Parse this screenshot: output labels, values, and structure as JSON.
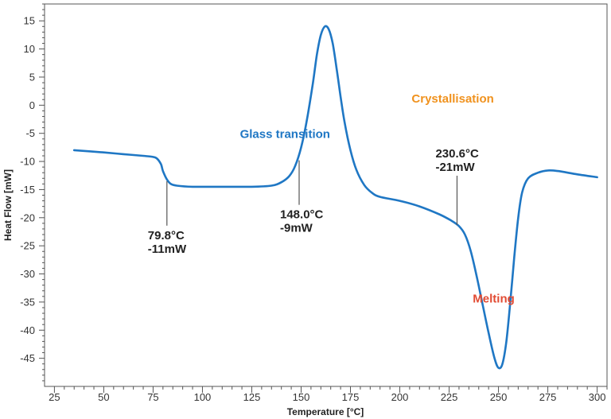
{
  "chart_data": {
    "type": "line",
    "xlabel": "Temperature [°C]",
    "ylabel": "Heat Flow [mW]",
    "xlim": [
      20,
      305
    ],
    "ylim": [
      -50,
      18
    ],
    "x_ticks_major": [
      25,
      50,
      75,
      100,
      125,
      150,
      175,
      200,
      225,
      250,
      275,
      300
    ],
    "y_ticks_major": [
      15,
      10,
      5,
      0,
      -5,
      -10,
      -15,
      -20,
      -25,
      -30,
      -35,
      -40,
      -45
    ],
    "x_tick_labels": [
      "25",
      "50",
      "75",
      "100",
      "125",
      "150",
      "175",
      "200",
      "225",
      "250",
      "275",
      "300"
    ],
    "y_tick_labels": [
      "15",
      "10",
      "5",
      "0",
      "-5",
      "-10",
      "-15",
      "-20",
      "-25",
      "-30",
      "-35",
      "-40",
      "-45"
    ],
    "grid": false,
    "line_color": "#1f77c4",
    "series": [
      {
        "values": [
          [
            35,
            -8.0
          ],
          [
            50,
            -8.4
          ],
          [
            60,
            -8.7
          ],
          [
            70,
            -9.0
          ],
          [
            75,
            -9.2
          ],
          [
            77,
            -9.5
          ],
          [
            79,
            -10.5
          ],
          [
            80,
            -11.7
          ],
          [
            82,
            -13.2
          ],
          [
            84,
            -14.0
          ],
          [
            87,
            -14.3
          ],
          [
            95,
            -14.5
          ],
          [
            110,
            -14.5
          ],
          [
            125,
            -14.5
          ],
          [
            135,
            -14.3
          ],
          [
            140,
            -13.7
          ],
          [
            144,
            -12.6
          ],
          [
            147,
            -10.8
          ],
          [
            150,
            -7.5
          ],
          [
            153,
            -2.5
          ],
          [
            156,
            4.0
          ],
          [
            158,
            9.0
          ],
          [
            160,
            12.5
          ],
          [
            162,
            14.0
          ],
          [
            164,
            13.5
          ],
          [
            166,
            11.0
          ],
          [
            168,
            6.5
          ],
          [
            170,
            1.5
          ],
          [
            172,
            -3.0
          ],
          [
            175,
            -8.0
          ],
          [
            178,
            -11.5
          ],
          [
            182,
            -14.2
          ],
          [
            186,
            -15.6
          ],
          [
            190,
            -16.3
          ],
          [
            200,
            -17.0
          ],
          [
            210,
            -18.0
          ],
          [
            220,
            -19.4
          ],
          [
            226,
            -20.5
          ],
          [
            230,
            -21.5
          ],
          [
            233,
            -23.0
          ],
          [
            236,
            -26.0
          ],
          [
            239,
            -30.5
          ],
          [
            242,
            -35.5
          ],
          [
            245,
            -40.5
          ],
          [
            248,
            -45.0
          ],
          [
            250,
            -46.7
          ],
          [
            252,
            -46.0
          ],
          [
            254,
            -42.0
          ],
          [
            256,
            -35.0
          ],
          [
            258,
            -27.0
          ],
          [
            260,
            -20.0
          ],
          [
            262,
            -15.5
          ],
          [
            265,
            -13.0
          ],
          [
            270,
            -12.0
          ],
          [
            275,
            -11.6
          ],
          [
            280,
            -11.7
          ],
          [
            290,
            -12.3
          ],
          [
            300,
            -12.8
          ]
        ]
      }
    ],
    "annotations": [
      {
        "x": 82,
        "y": -13.5,
        "lines": [
          "79.8°C",
          "-11mW"
        ]
      },
      {
        "x": 149,
        "y": -9.8,
        "lines": [
          "148.0°C",
          "-9mW"
        ]
      },
      {
        "x": 229,
        "y": -21.3,
        "lines": [
          "230.6°C",
          "-21mW"
        ]
      }
    ],
    "region_labels": [
      {
        "text": "Glass transition",
        "x": 119,
        "y": -5.8,
        "color": "#1f77c4"
      },
      {
        "text": "Crystallisation",
        "x": 206,
        "y": 0.5,
        "color": "#f0921e"
      },
      {
        "text": "Melting",
        "x": 237,
        "y": -35.1,
        "color": "#e24b33"
      }
    ]
  }
}
